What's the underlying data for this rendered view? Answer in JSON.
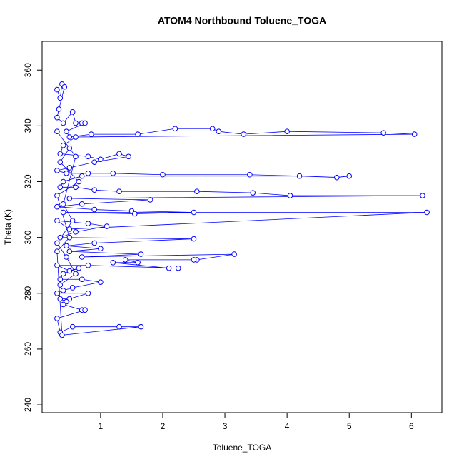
{
  "chart_data": {
    "type": "line",
    "markers": true,
    "color": "#0000ff",
    "title": "ATOM4 Northbound Toluene_TOGA",
    "x_label": "Toluene_TOGA",
    "y_label": "Theta (K)",
    "xlim": [
      0.06,
      6.49
    ],
    "ylim": [
      237.2,
      370.3
    ],
    "xticks": [
      1,
      2,
      3,
      4,
      5,
      6
    ],
    "yticks": [
      240,
      260,
      280,
      300,
      320,
      340,
      360
    ],
    "x": [
      0.3,
      0.35,
      0.38,
      0.42,
      0.33,
      0.3,
      0.4,
      0.55,
      0.6,
      0.7,
      0.75,
      0.45,
      0.5,
      0.85,
      1.6,
      2.2,
      2.8,
      2.9,
      3.3,
      4.0,
      5.55,
      6.05,
      0.6,
      0.4,
      0.35,
      0.8,
      1.0,
      1.3,
      1.45,
      0.9,
      0.5,
      0.3,
      0.45,
      0.8,
      1.2,
      2.0,
      3.4,
      4.2,
      4.8,
      5.0,
      0.7,
      0.4,
      0.35,
      0.6,
      0.9,
      1.3,
      2.55,
      3.45,
      4.05,
      6.18,
      0.5,
      1.8,
      0.7,
      0.3,
      0.9,
      1.5,
      2.5,
      1.55,
      0.4,
      6.25,
      0.5,
      0.3,
      0.8,
      1.1,
      0.6,
      0.35,
      2.5,
      0.9,
      0.45,
      1.0,
      0.5,
      1.65,
      0.7,
      3.15,
      2.55,
      2.5,
      1.4,
      1.6,
      1.2,
      2.1,
      2.25,
      0.8,
      0.3,
      0.5,
      0.65,
      0.4,
      0.35,
      0.7,
      1.0,
      0.55,
      0.4,
      0.3,
      0.8,
      0.5,
      0.35,
      0.45,
      0.4,
      0.7,
      0.75,
      0.3,
      0.35,
      0.55,
      1.3,
      1.65,
      0.38,
      0.3,
      0.5,
      0.3,
      0.65,
      0.35,
      0.5,
      0.3,
      0.6,
      0.4,
      0.55,
      0.3,
      0.45,
      0.6,
      0.35
    ],
    "values": [
      353,
      350,
      355,
      354,
      346,
      343,
      341,
      345,
      341,
      341,
      341,
      338,
      336,
      337,
      337,
      339,
      339,
      338,
      337,
      338,
      337.5,
      337,
      336,
      333,
      330,
      329,
      328,
      330,
      329,
      327,
      325,
      324,
      323,
      323,
      323,
      322.5,
      322.5,
      322,
      321.5,
      322,
      322,
      320,
      318,
      318,
      317,
      316.5,
      316.5,
      316,
      315,
      315,
      314,
      313.5,
      312,
      311,
      310,
      309.5,
      309,
      308.5,
      309,
      309,
      303,
      306,
      305,
      304,
      302,
      300,
      299.5,
      298,
      297,
      296,
      295,
      294,
      293,
      294,
      292,
      292,
      292,
      291,
      291,
      289,
      289,
      290,
      290,
      288,
      289,
      287,
      285,
      285,
      284,
      282,
      281,
      280,
      280,
      278,
      278,
      277,
      276,
      274,
      274,
      271,
      266,
      268,
      268,
      268,
      265,
      295,
      300,
      315,
      320,
      327,
      332,
      338,
      329,
      312,
      306,
      298,
      293,
      287,
      283
    ]
  }
}
